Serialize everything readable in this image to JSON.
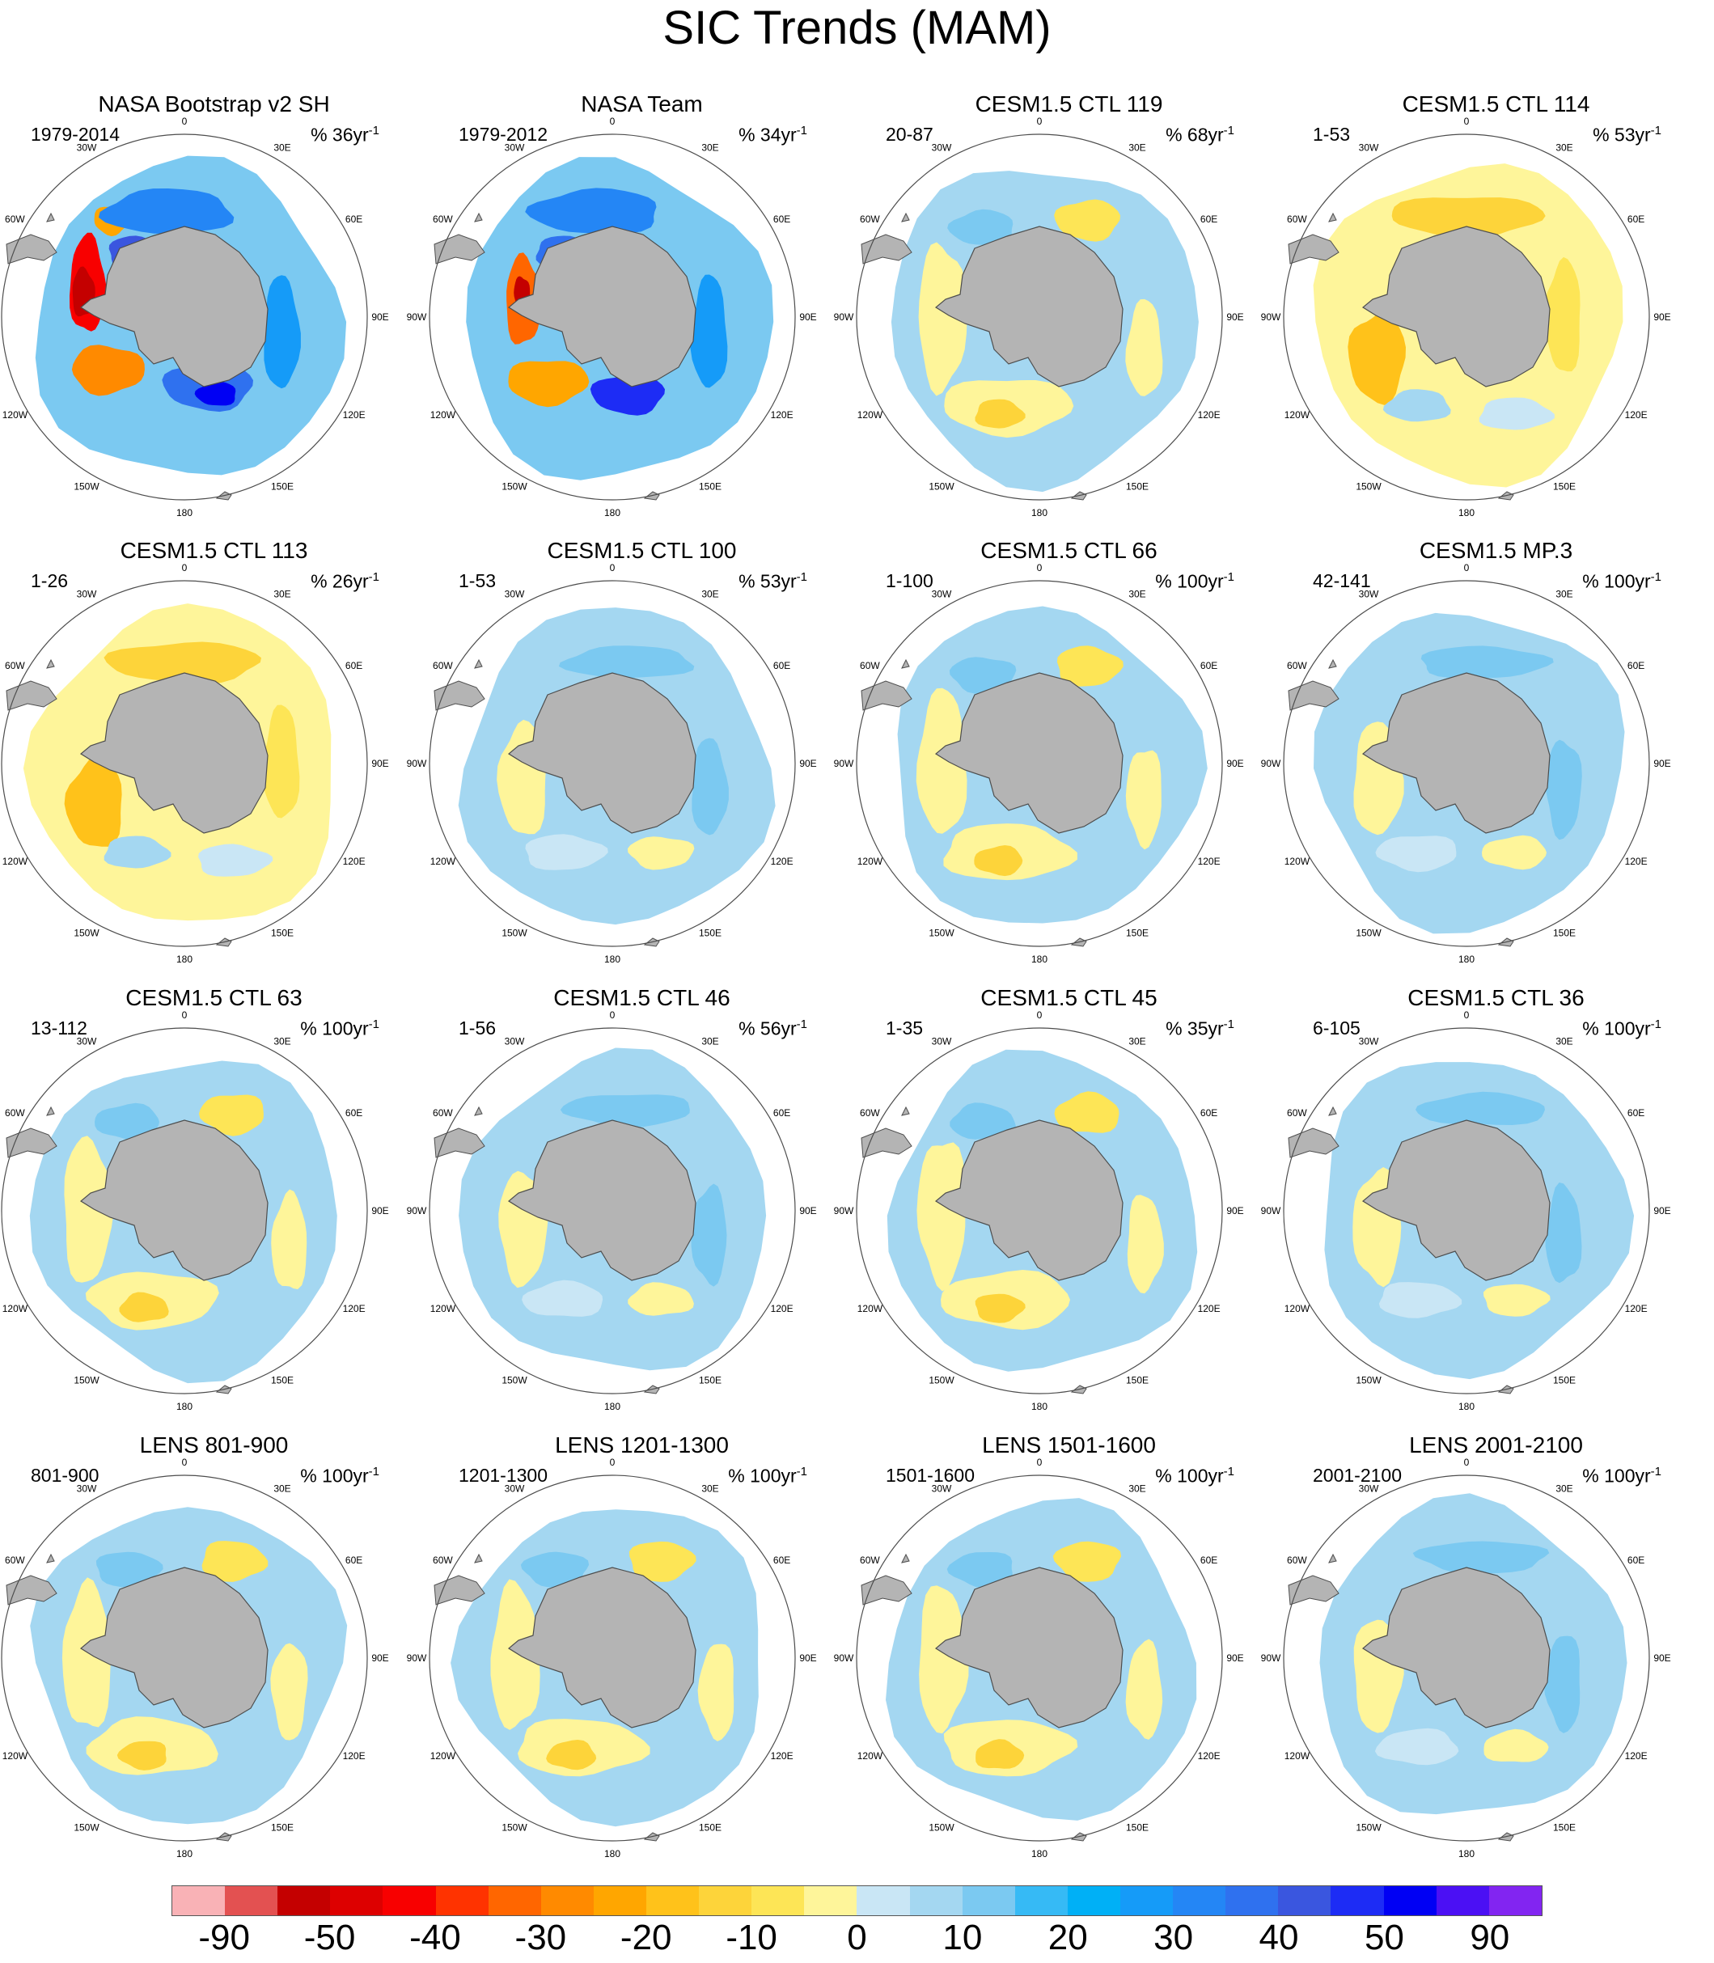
{
  "title": "SIC Trends (MAM)",
  "lon_labels": [
    "0",
    "30E",
    "60E",
    "90E",
    "120E",
    "150E",
    "180",
    "150W",
    "120W",
    "90W",
    "60W",
    "30W"
  ],
  "colors": {
    "land": "#b4b4b4",
    "coast": "#4d4d4d",
    "circle": "#4d4d4d",
    "scale": [
      "#f9b2b6",
      "#e35151",
      "#c40000",
      "#dd0000",
      "#f80000",
      "#ff3300",
      "#ff6600",
      "#ff8a00",
      "#ffa600",
      "#ffc21a",
      "#fdd43a",
      "#fde556",
      "#fef59a",
      "#c9e6f5",
      "#a4d7f1",
      "#7bc9f1",
      "#36baf5",
      "#00b0f6",
      "#159bf8",
      "#2486f5",
      "#2f71ef",
      "#3a56df",
      "#1d2cf5",
      "#0000f4",
      "#4b10f4",
      "#8225f1"
    ]
  },
  "colorbar_labels": [
    "-90",
    "-50",
    "-40",
    "-30",
    "-20",
    "-10",
    "0",
    "10",
    "20",
    "30",
    "40",
    "50",
    "90"
  ],
  "panels": [
    {
      "title": "NASA Bootstrap v2 SH",
      "period": "1979-2014",
      "trend": "% 36yr",
      "unit_exp": "-1",
      "style": "obs1"
    },
    {
      "title": "NASA Team",
      "period": "1979-2012",
      "trend": "% 34yr",
      "unit_exp": "-1",
      "style": "obs2"
    },
    {
      "title": "CESM1.5 CTL 119",
      "period": "20-87",
      "trend": "% 68yr",
      "unit_exp": "-1",
      "style": "mix"
    },
    {
      "title": "CESM1.5 CTL 114",
      "period": "1-53",
      "trend": "% 53yr",
      "unit_exp": "-1",
      "style": "yellow"
    },
    {
      "title": "CESM1.5 CTL 113",
      "period": "1-26",
      "trend": "% 26yr",
      "unit_exp": "-1",
      "style": "yellow"
    },
    {
      "title": "CESM1.5 CTL 100",
      "period": "1-53",
      "trend": "% 53yr",
      "unit_exp": "-1",
      "style": "blue"
    },
    {
      "title": "CESM1.5 CTL 66",
      "period": "1-100",
      "trend": "% 100yr",
      "unit_exp": "-1",
      "style": "mix"
    },
    {
      "title": "CESM1.5 MP.3",
      "period": "42-141",
      "trend": "% 100yr",
      "unit_exp": "-1",
      "style": "blue"
    },
    {
      "title": "CESM1.5 CTL 63",
      "period": "13-112",
      "trend": "% 100yr",
      "unit_exp": "-1",
      "style": "mix"
    },
    {
      "title": "CESM1.5 CTL 46",
      "period": "1-56",
      "trend": "% 56yr",
      "unit_exp": "-1",
      "style": "blue"
    },
    {
      "title": "CESM1.5 CTL 45",
      "period": "1-35",
      "trend": "% 35yr",
      "unit_exp": "-1",
      "style": "mix"
    },
    {
      "title": "CESM1.5 CTL 36",
      "period": "6-105",
      "trend": "% 100yr",
      "unit_exp": "-1",
      "style": "blue"
    },
    {
      "title": "LENS 801-900",
      "period": "801-900",
      "trend": "% 100yr",
      "unit_exp": "-1",
      "style": "mix"
    },
    {
      "title": "LENS 1201-1300",
      "period": "1201-1300",
      "trend": "% 100yr",
      "unit_exp": "-1",
      "style": "mix"
    },
    {
      "title": "LENS 1501-1600",
      "period": "1501-1600",
      "trend": "% 100yr",
      "unit_exp": "-1",
      "style": "mix"
    },
    {
      "title": "LENS 2001-2100",
      "period": "2001-2100",
      "trend": "% 100yr",
      "unit_exp": "-1",
      "style": "blue"
    }
  ]
}
